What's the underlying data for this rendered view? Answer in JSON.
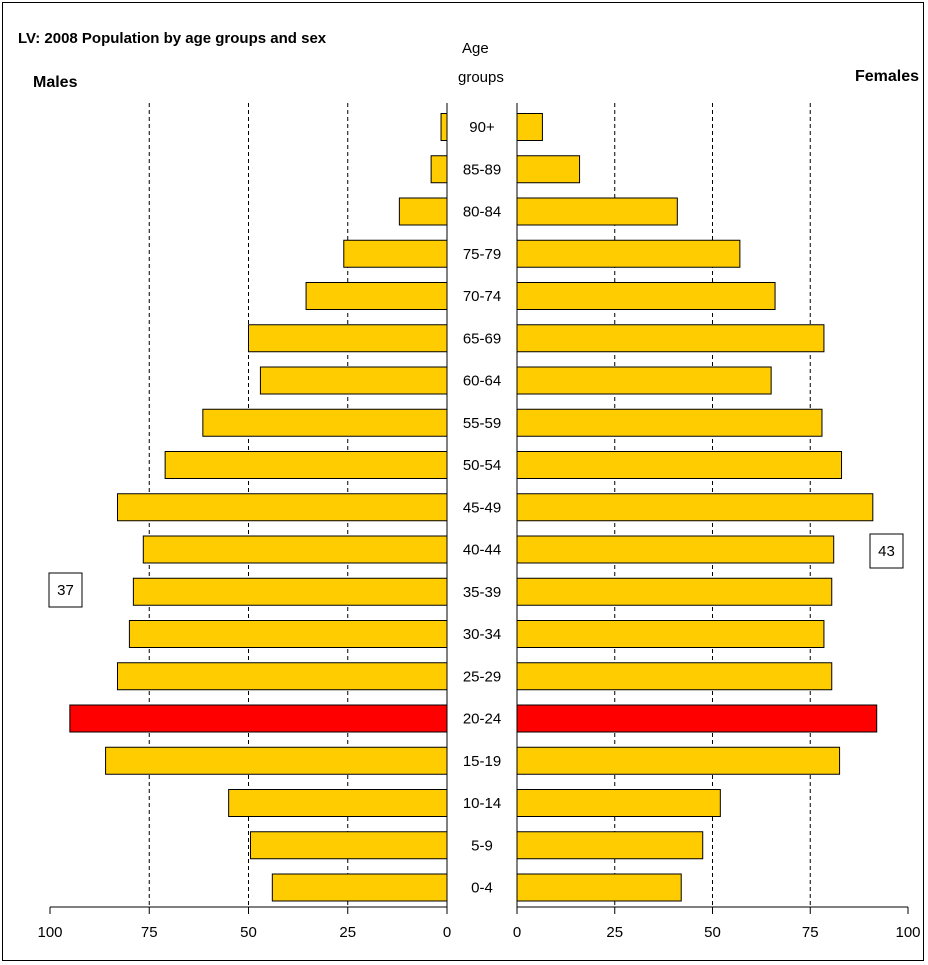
{
  "chart_data": {
    "type": "bar",
    "title": "LV: 2008 Population by age groups and sex",
    "left_label": "Males",
    "right_label": "Females",
    "center_header": [
      "Age",
      "groups"
    ],
    "categories": [
      "90+",
      "85-89",
      "80-84",
      "75-79",
      "70-74",
      "65-69",
      "60-64",
      "55-59",
      "50-54",
      "45-49",
      "40-44",
      "35-39",
      "30-34",
      "25-29",
      "20-24",
      "15-19",
      "10-14",
      "5-9",
      "0-4"
    ],
    "series": [
      {
        "name": "Males",
        "values": [
          1.5,
          4,
          12,
          26,
          35.5,
          50,
          47,
          61.5,
          71,
          83,
          76.5,
          79,
          80,
          83,
          95,
          86,
          55,
          49.5,
          44
        ]
      },
      {
        "name": "Females",
        "values": [
          6.5,
          16,
          41,
          57,
          66,
          78.5,
          65,
          78,
          83,
          91,
          81,
          80.5,
          78.5,
          80.5,
          92,
          82.5,
          52,
          47.5,
          42
        ]
      }
    ],
    "highlight_category": "20-24",
    "xlim": [
      0,
      100
    ],
    "xticks": [
      100,
      75,
      50,
      25,
      0
    ],
    "xticks_right": [
      0,
      25,
      50,
      75,
      100
    ],
    "grid": "dashed vertical",
    "annotations": [
      {
        "side": "left",
        "text": "37"
      },
      {
        "side": "right",
        "text": "43"
      }
    ],
    "colors": {
      "bar": "#FFCC00",
      "highlight": "#FF0000",
      "bar_border": "#000000"
    }
  }
}
